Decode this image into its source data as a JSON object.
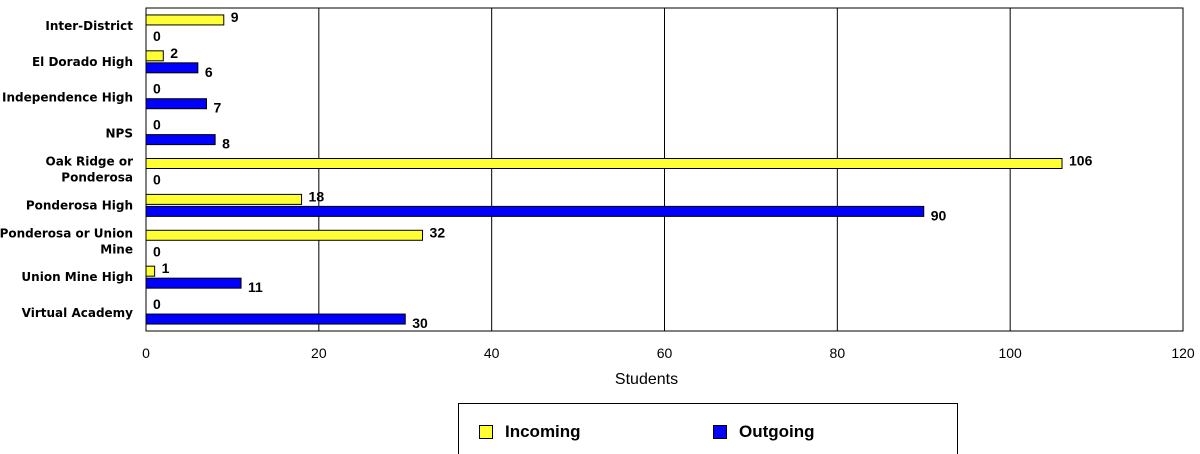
{
  "chart_data": {
    "type": "bar",
    "orientation": "horizontal",
    "categories": [
      "Inter-District",
      "El Dorado High",
      "Independence High",
      "NPS",
      "Oak Ridge or Ponderosa",
      "Ponderosa High",
      "Ponderosa or Union Mine",
      "Union Mine High",
      "Virtual Academy"
    ],
    "category_lines": [
      [
        "Inter-District"
      ],
      [
        "El Dorado High"
      ],
      [
        "Independence High"
      ],
      [
        "NPS"
      ],
      [
        "Oak Ridge or",
        "Ponderosa"
      ],
      [
        "Ponderosa High"
      ],
      [
        "Ponderosa or Union",
        "Mine"
      ],
      [
        "Union Mine High"
      ],
      [
        "Virtual Academy"
      ]
    ],
    "series": [
      {
        "name": "Incoming",
        "color": "#ffff33",
        "values": [
          9,
          2,
          0,
          0,
          106,
          18,
          32,
          1,
          0
        ]
      },
      {
        "name": "Outgoing",
        "color": "#0000ff",
        "values": [
          0,
          6,
          7,
          8,
          0,
          90,
          0,
          11,
          30
        ]
      }
    ],
    "xlabel": "Students",
    "xlim": [
      0,
      120
    ],
    "xticks": [
      0,
      20,
      40,
      60,
      80,
      100,
      120
    ],
    "grid": true,
    "legend_position": "bottom"
  }
}
